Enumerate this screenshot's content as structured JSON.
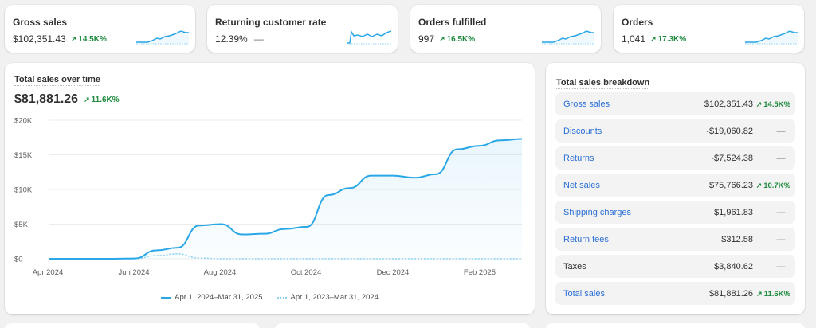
{
  "metrics": [
    {
      "title": "Gross sales",
      "value": "$102,351.43",
      "delta": "14.5K%",
      "has_delta": true
    },
    {
      "title": "Returning customer rate",
      "value": "12.39%",
      "delta": "—",
      "has_delta": false
    },
    {
      "title": "Orders fulfilled",
      "value": "997",
      "delta": "16.5K%",
      "has_delta": true
    },
    {
      "title": "Orders",
      "value": "1,041",
      "delta": "17.3K%",
      "has_delta": true
    }
  ],
  "total_sales": {
    "title": "Total sales over time",
    "value": "$81,881.26",
    "delta": "11.6K%"
  },
  "chart_data": {
    "type": "area",
    "x_tick_labels": [
      "Apr 2024",
      "Jun 2024",
      "Aug 2024",
      "Oct 2024",
      "Dec 2024",
      "Feb 2025"
    ],
    "y_tick_labels": [
      "$0",
      "$5K",
      "$10K",
      "$15K",
      "$20K"
    ],
    "ylim": [
      0,
      20000
    ],
    "grid": true,
    "legend_position": "bottom",
    "series": [
      {
        "name": "Apr 1, 2024–Mar 31, 2025",
        "style": "solid",
        "color": "#2aa7e6",
        "points": [
          [
            0,
            0
          ],
          [
            1,
            0
          ],
          [
            2,
            0
          ],
          [
            3,
            0
          ],
          [
            4,
            50
          ],
          [
            5,
            1200
          ],
          [
            6,
            1600
          ],
          [
            7,
            4800
          ],
          [
            8,
            5000
          ],
          [
            9,
            3500
          ],
          [
            10,
            3600
          ],
          [
            11,
            4300
          ],
          [
            12,
            4600
          ],
          [
            13,
            9200
          ],
          [
            14,
            10200
          ],
          [
            15,
            12000
          ],
          [
            16,
            12000
          ],
          [
            17,
            11700
          ],
          [
            18,
            12200
          ],
          [
            19,
            15800
          ],
          [
            20,
            16300
          ],
          [
            21,
            17100
          ],
          [
            22,
            17300
          ]
        ]
      },
      {
        "name": "Apr 1, 2023–Mar 31, 2024",
        "style": "dotted",
        "color": "#8ed3f3",
        "points": [
          [
            0,
            0
          ],
          [
            1,
            0
          ],
          [
            2,
            0
          ],
          [
            3,
            0
          ],
          [
            4,
            0
          ],
          [
            5,
            450
          ],
          [
            6,
            700
          ],
          [
            7,
            100
          ],
          [
            8,
            0
          ],
          [
            9,
            0
          ],
          [
            10,
            0
          ],
          [
            11,
            0
          ],
          [
            12,
            0
          ],
          [
            13,
            0
          ],
          [
            14,
            0
          ],
          [
            15,
            0
          ],
          [
            16,
            0
          ],
          [
            17,
            0
          ],
          [
            18,
            0
          ],
          [
            19,
            0
          ],
          [
            20,
            0
          ],
          [
            21,
            0
          ],
          [
            22,
            0
          ]
        ]
      }
    ]
  },
  "breakdown": {
    "title": "Total sales breakdown",
    "rows": [
      {
        "label": "Gross sales",
        "amount": "$102,351.43",
        "change": "14.5K%",
        "up": true,
        "link": true
      },
      {
        "label": "Discounts",
        "amount": "-$19,060.82",
        "change": "—",
        "up": false,
        "link": true
      },
      {
        "label": "Returns",
        "amount": "-$7,524.38",
        "change": "—",
        "up": false,
        "link": true
      },
      {
        "label": "Net sales",
        "amount": "$75,766.23",
        "change": "10.7K%",
        "up": true,
        "link": true
      },
      {
        "label": "Shipping charges",
        "amount": "$1,961.83",
        "change": "—",
        "up": false,
        "link": true
      },
      {
        "label": "Return fees",
        "amount": "$312.58",
        "change": "—",
        "up": false,
        "link": true
      },
      {
        "label": "Taxes",
        "amount": "$3,840.62",
        "change": "—",
        "up": false,
        "link": false
      },
      {
        "label": "Total sales",
        "amount": "$81,881.26",
        "change": "11.6K%",
        "up": true,
        "link": true
      }
    ]
  },
  "colors": {
    "accent": "#2aa7e6",
    "positive": "#1f8a3e",
    "link": "#2b6fd6"
  }
}
